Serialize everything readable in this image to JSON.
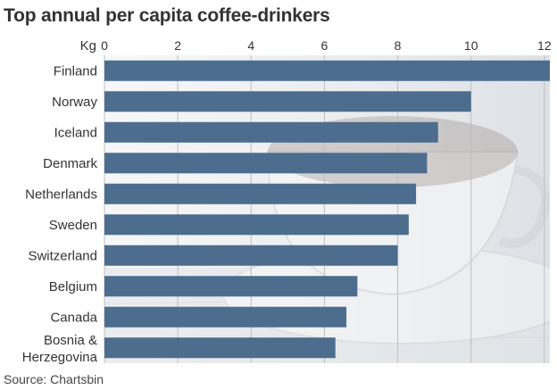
{
  "chart_data": {
    "type": "bar",
    "orientation": "horizontal",
    "title": "Top annual per capita coffee-drinkers",
    "xlabel": "Kg",
    "ylabel": "",
    "xlim": [
      0,
      12
    ],
    "x_ticks": [
      0,
      2,
      4,
      6,
      8,
      10,
      12
    ],
    "grid": true,
    "categories": [
      "Finland",
      "Norway",
      "Iceland",
      "Denmark",
      "Netherlands",
      "Sweden",
      "Switzerland",
      "Belgium",
      "Canada",
      "Bosnia & Herzegovina"
    ],
    "values": [
      12.2,
      10.0,
      9.1,
      8.8,
      8.5,
      8.3,
      8.0,
      6.9,
      6.6,
      6.3
    ],
    "source": "Source: Chartsbin"
  },
  "colors": {
    "bar": "#4d6d8e",
    "grid": "#bfbfbf",
    "plot_bg": "#eef0f2"
  },
  "background_image": "coffee-cup-photo"
}
